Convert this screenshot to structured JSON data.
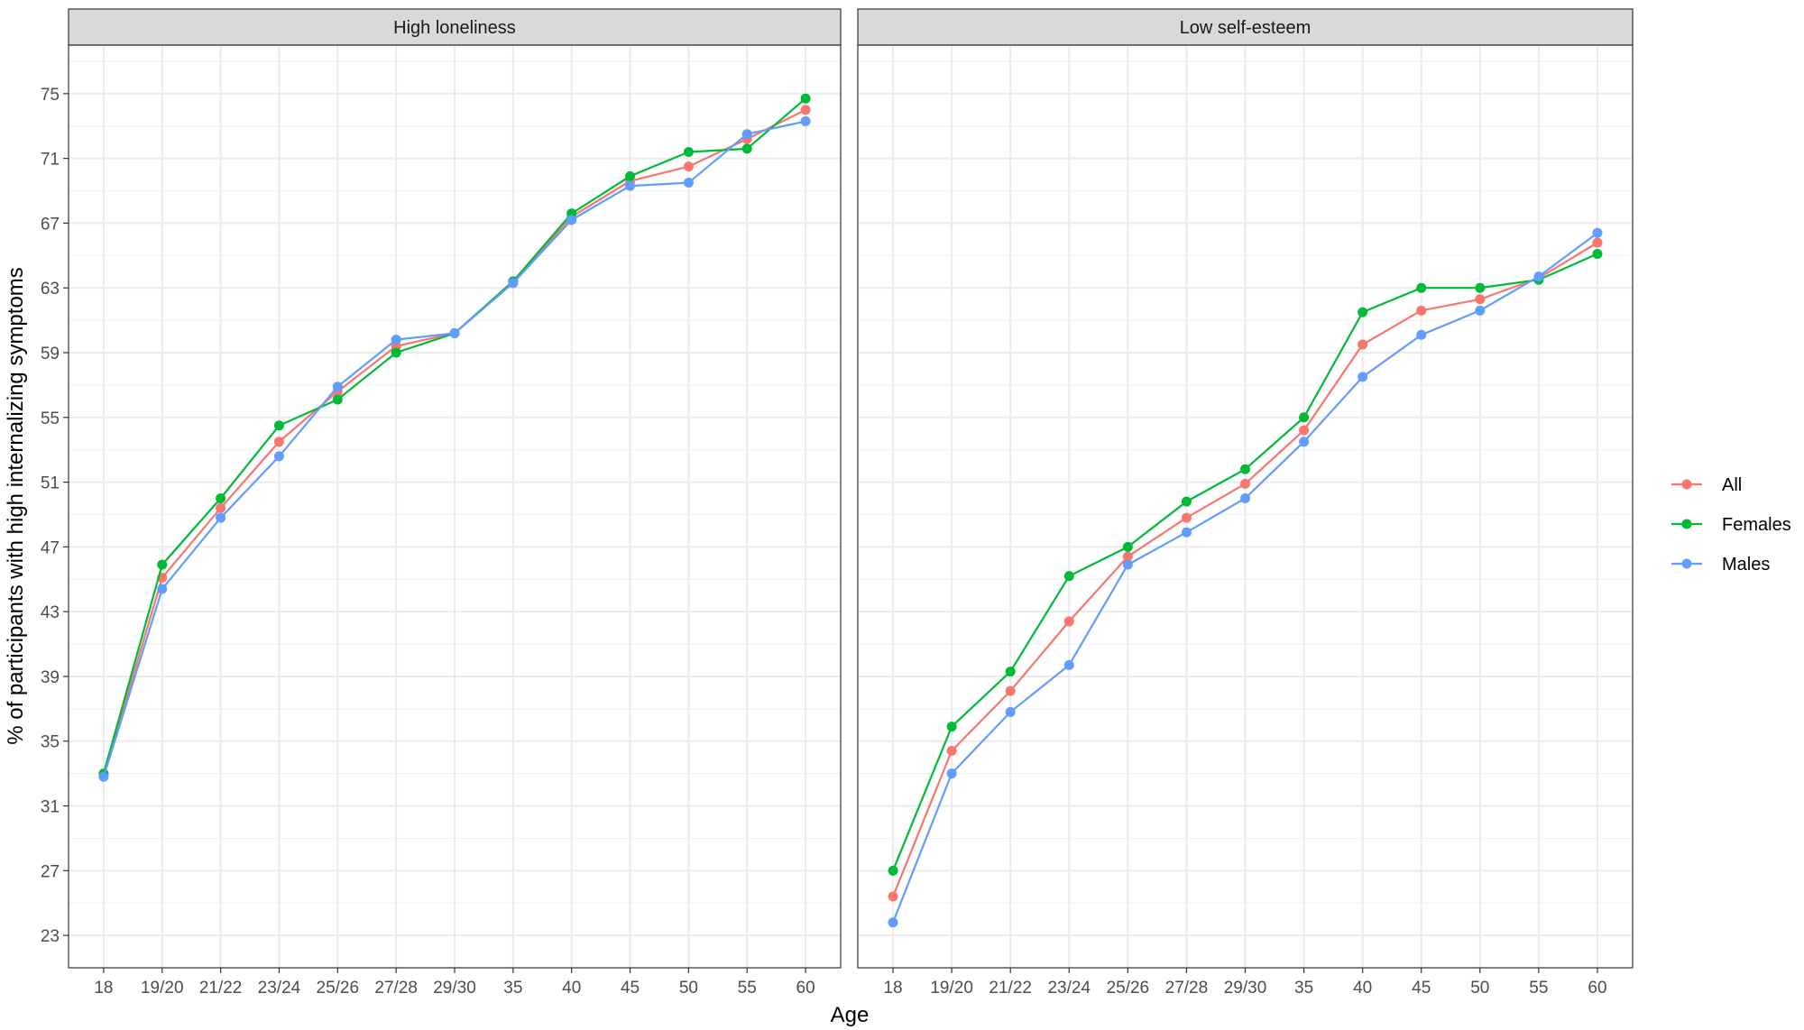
{
  "chart_data": {
    "type": "line",
    "xlabel": "Age",
    "ylabel": "% of participants with high internalizing symptoms",
    "categories": [
      "18",
      "19/20",
      "21/22",
      "23/24",
      "25/26",
      "27/28",
      "29/30",
      "35",
      "40",
      "45",
      "50",
      "55",
      "60"
    ],
    "y_ticks": [
      23,
      27,
      31,
      35,
      39,
      43,
      47,
      51,
      55,
      59,
      63,
      67,
      71,
      75
    ],
    "ylim": [
      21,
      78
    ],
    "grid": true,
    "legend_position": "right",
    "legend": [
      "All",
      "Females",
      "Males"
    ],
    "colors": {
      "All": "#F8766D",
      "Females": "#00BA38",
      "Males": "#619CFF"
    },
    "panels": [
      {
        "title": "High loneliness",
        "series": [
          {
            "name": "All",
            "values": [
              32.9,
              45.1,
              49.4,
              53.5,
              56.6,
              59.4,
              60.2,
              63.4,
              67.4,
              69.6,
              70.5,
              72.2,
              74.0
            ]
          },
          {
            "name": "Females",
            "values": [
              33.0,
              45.9,
              50.0,
              54.5,
              56.1,
              59.0,
              60.2,
              63.4,
              67.6,
              69.9,
              71.4,
              71.6,
              74.7
            ]
          },
          {
            "name": "Males",
            "values": [
              32.8,
              44.4,
              48.8,
              52.6,
              56.9,
              59.8,
              60.2,
              63.3,
              67.2,
              69.3,
              69.5,
              72.5,
              73.3
            ]
          }
        ]
      },
      {
        "title": "Low self-esteem",
        "series": [
          {
            "name": "All",
            "values": [
              25.4,
              34.4,
              38.1,
              42.4,
              46.4,
              48.8,
              50.9,
              54.2,
              59.5,
              61.6,
              62.3,
              63.6,
              65.8
            ]
          },
          {
            "name": "Females",
            "values": [
              27.0,
              35.9,
              39.3,
              45.2,
              47.0,
              49.8,
              51.8,
              55.0,
              61.5,
              63.0,
              63.0,
              63.5,
              65.1
            ]
          },
          {
            "name": "Males",
            "values": [
              23.8,
              33.0,
              36.8,
              39.7,
              45.9,
              47.9,
              50.0,
              53.5,
              57.5,
              60.1,
              61.6,
              63.7,
              66.4
            ]
          }
        ]
      }
    ]
  }
}
